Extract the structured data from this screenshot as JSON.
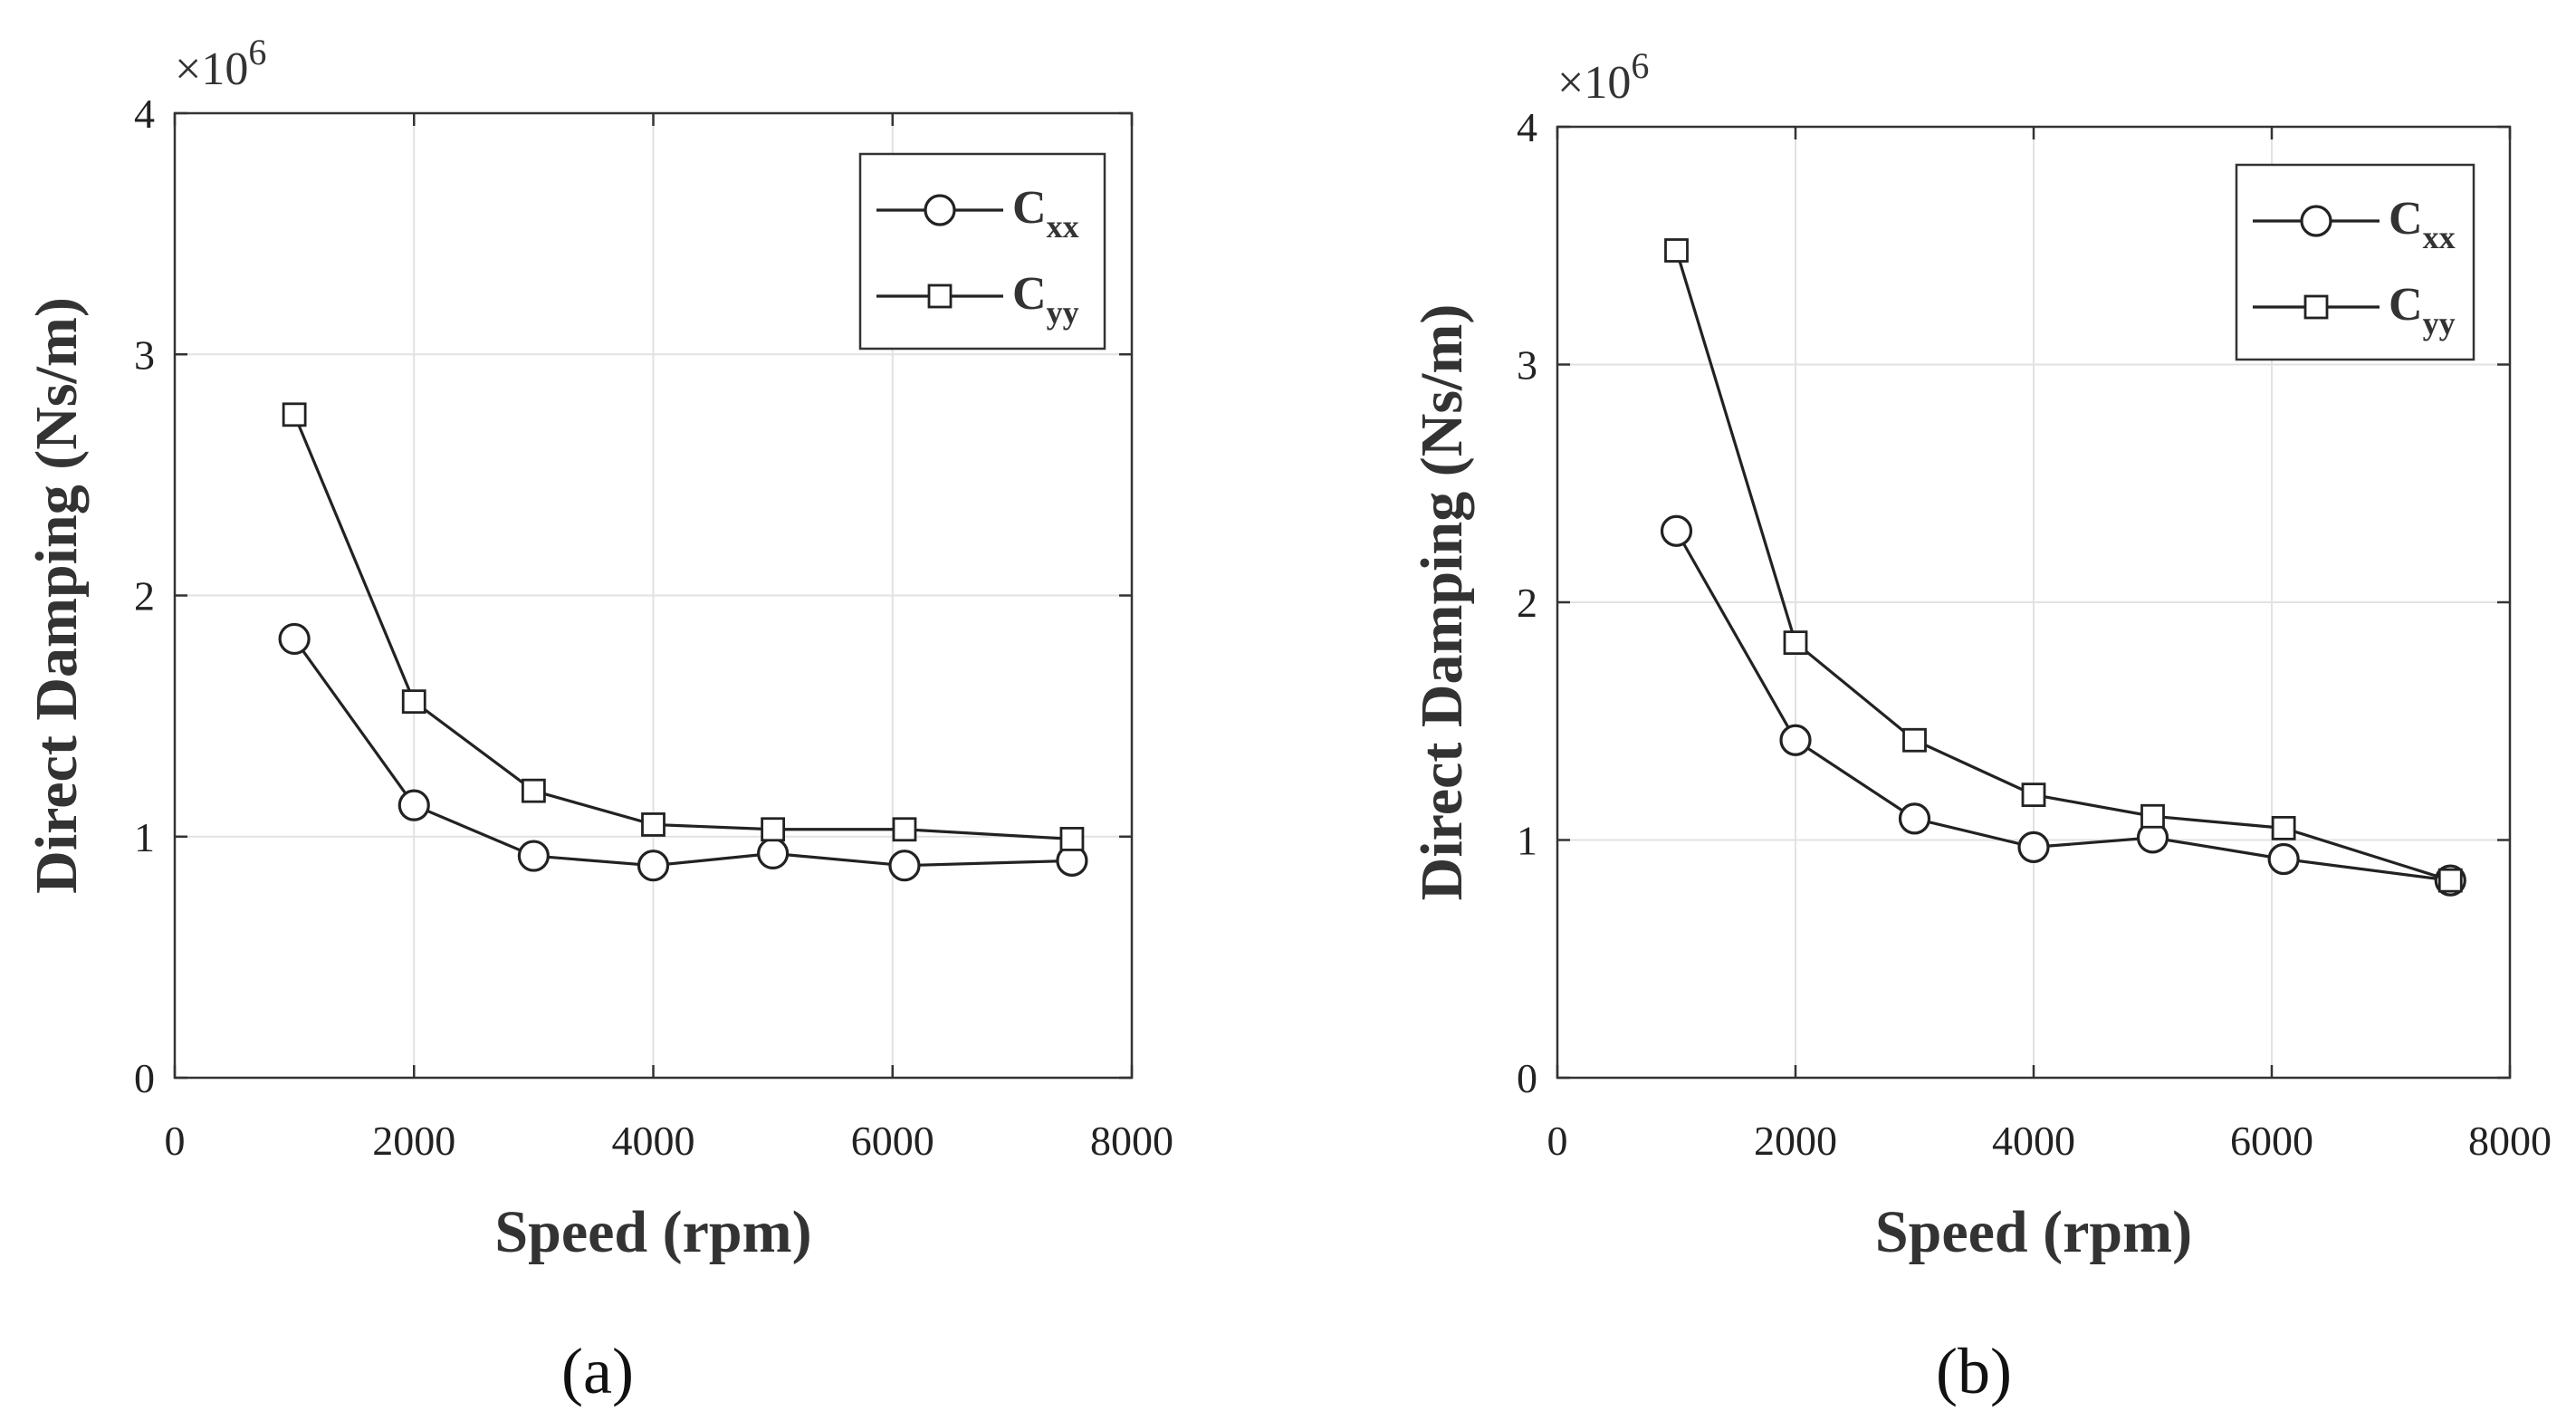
{
  "chart_data": [
    {
      "type": "line",
      "panel_label": "(a)",
      "title": "",
      "xlabel": "Speed (rpm)",
      "ylabel": "Direct Damping (Ns/m)",
      "y_multiplier": "×10",
      "y_multiplier_exp": "6",
      "xlim": [
        0,
        8000
      ],
      "ylim": [
        0,
        4
      ],
      "x_ticks": [
        "0",
        "2000",
        "4000",
        "6000",
        "8000"
      ],
      "y_ticks": [
        "0",
        "1",
        "2",
        "3",
        "4"
      ],
      "grid": true,
      "legend_position": "top-right",
      "series": [
        {
          "name": "C",
          "sub": "xx",
          "marker": "circle",
          "x": [
            1000,
            2000,
            3000,
            4000,
            5000,
            6100,
            7500
          ],
          "values": [
            1.82,
            1.13,
            0.92,
            0.88,
            0.93,
            0.88,
            0.9
          ]
        },
        {
          "name": "C",
          "sub": "yy",
          "marker": "square",
          "x": [
            1000,
            2000,
            3000,
            4000,
            5000,
            6100,
            7500
          ],
          "values": [
            2.75,
            1.56,
            1.19,
            1.05,
            1.03,
            1.03,
            0.99
          ]
        }
      ]
    },
    {
      "type": "line",
      "panel_label": "(b)",
      "title": "",
      "xlabel": "Speed (rpm)",
      "ylabel": "Direct Damping (Ns/m)",
      "y_multiplier": "×10",
      "y_multiplier_exp": "6",
      "xlim": [
        0,
        8000
      ],
      "ylim": [
        0,
        4
      ],
      "x_ticks": [
        "0",
        "2000",
        "4000",
        "6000",
        "8000"
      ],
      "y_ticks": [
        "0",
        "1",
        "2",
        "3",
        "4"
      ],
      "grid": true,
      "legend_position": "top-right",
      "series": [
        {
          "name": "C",
          "sub": "xx",
          "marker": "circle",
          "x": [
            1000,
            2000,
            3000,
            4000,
            5000,
            6100,
            7500
          ],
          "values": [
            2.3,
            1.42,
            1.09,
            0.97,
            1.01,
            0.92,
            0.83
          ]
        },
        {
          "name": "C",
          "sub": "yy",
          "marker": "square",
          "x": [
            1000,
            2000,
            3000,
            4000,
            5000,
            6100,
            7500
          ],
          "values": [
            3.48,
            1.83,
            1.42,
            1.19,
            1.1,
            1.05,
            0.83
          ]
        }
      ]
    }
  ]
}
